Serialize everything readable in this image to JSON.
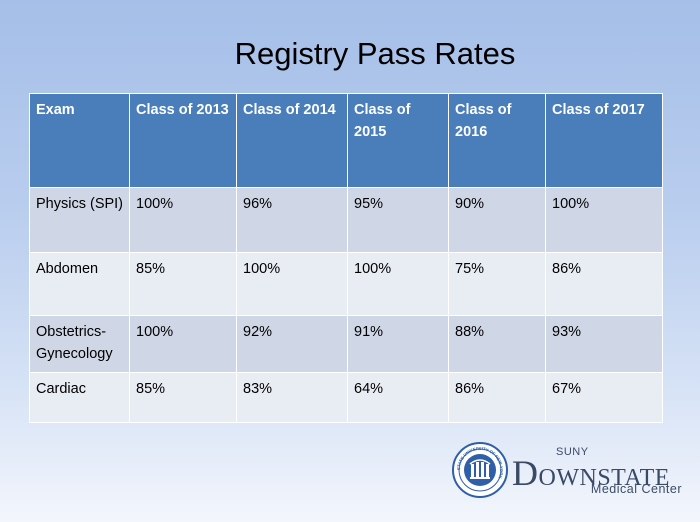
{
  "title": "Registry Pass Rates",
  "table": {
    "headers": [
      "Exam",
      "Class of 2013",
      "Class of 2014",
      "Class of 2015",
      "Class of 2016",
      "Class of 2017"
    ],
    "rows": [
      [
        "Physics (SPI)",
        "100%",
        "96%",
        "95%",
        "90%",
        "100%"
      ],
      [
        "Abdomen",
        "85%",
        "100%",
        "100%",
        "75%",
        "86%"
      ],
      [
        "Obstetrics-Gynecology",
        "100%",
        "92%",
        "91%",
        "88%",
        "93%"
      ],
      [
        "Cardiac",
        "85%",
        "83%",
        "64%",
        "86%",
        "67%"
      ]
    ]
  },
  "logo": {
    "suny": "SUNY",
    "downstate_initial": "D",
    "downstate_rest": "OWNSTATE",
    "medical_center": "Medical Center",
    "seal_text": "STATE UNIVERSITY OF NEW YORK"
  },
  "colors": {
    "header_bg": "#4a7ebb",
    "row_odd_bg": "#cfd7e6",
    "row_even_bg": "#e8ecf3",
    "seal_blue": "#2f5fa8"
  }
}
